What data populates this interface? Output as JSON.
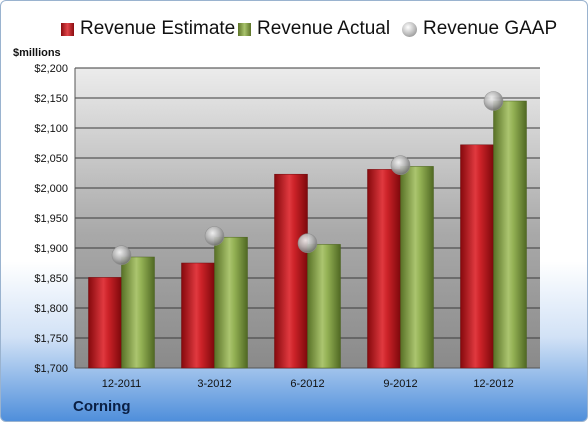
{
  "unit_label": "$millions",
  "company": "Corning",
  "legend": {
    "estimate": "Revenue Estimate",
    "actual": "Revenue Actual",
    "gaap": "Revenue GAAP"
  },
  "colors": {
    "estimate": "#c81e24",
    "actual": "#8fae4c",
    "gaap": "#a8a8a8"
  },
  "chart_data": {
    "type": "bar",
    "title": "",
    "ylabel": "$millions",
    "categories": [
      "12-2011",
      "3-2012",
      "6-2012",
      "9-2012",
      "12-2012"
    ],
    "series": [
      {
        "name": "Revenue Estimate",
        "values": [
          1851,
          1875,
          2023,
          2031,
          2072
        ]
      },
      {
        "name": "Revenue Actual",
        "values": [
          1885,
          1918,
          1906,
          2036,
          2145
        ]
      },
      {
        "name": "Revenue GAAP",
        "type": "marker",
        "values": [
          1888,
          1920,
          1908,
          2038,
          2145
        ]
      }
    ],
    "ylim": [
      1700,
      2200
    ],
    "yticks": [
      1700,
      1750,
      1800,
      1850,
      1900,
      1950,
      2000,
      2050,
      2100,
      2150,
      2200
    ],
    "ytick_labels": [
      "$1,700",
      "$1,750",
      "$1,800",
      "$1,850",
      "$1,900",
      "$1,950",
      "$2,000",
      "$2,050",
      "$2,100",
      "$2,150",
      "$2,200"
    ],
    "grid": true,
    "legend_position": "top"
  }
}
